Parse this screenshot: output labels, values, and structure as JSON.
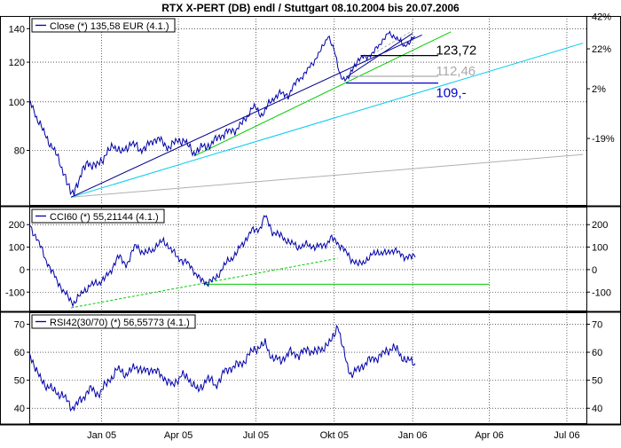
{
  "title": "RTX X-PERT (DB) endl / Stuttgart 08.10.2004  bis 20.07.2006",
  "colors": {
    "price": "#0000aa",
    "trend_blue": "#00008b",
    "trend_green": "#00cc00",
    "trend_cyan": "#00ccee",
    "trend_gray": "#b0b0b0",
    "level_black": "#000000",
    "level_blue": "#0000cc",
    "level_gray": "#aaaaaa"
  },
  "x_axis": {
    "ticks": [
      {
        "date": "2005-01-01",
        "label": "Jan 05"
      },
      {
        "date": "2005-04-01",
        "label": "Apr 05"
      },
      {
        "date": "2005-07-01",
        "label": "Jul 05"
      },
      {
        "date": "2005-10-01",
        "label": "Okt 05"
      },
      {
        "date": "2006-01-01",
        "label": "Jan 06"
      },
      {
        "date": "2006-04-01",
        "label": "Apr 06"
      },
      {
        "date": "2006-07-01",
        "label": "Jul 06"
      }
    ]
  },
  "chart_data": [
    {
      "type": "line",
      "legend": "Close (*) 135,58 EUR (4.1.)",
      "y_scale": "log",
      "ylim": [
        62,
        146
      ],
      "y_ticks_left": [
        80,
        100,
        120,
        140
      ],
      "y_ticks_right": [
        {
          "value": 84.5,
          "label": "-19%"
        },
        {
          "value": 106.2,
          "label": "2%"
        },
        {
          "value": 127.6,
          "label": "22%"
        },
        {
          "value": 148.1,
          "label": "42%"
        }
      ],
      "annotations": [
        {
          "label": "123,72",
          "value": 123.72,
          "color_key": "level_black",
          "line_from": "2005-11-01",
          "line_to": "2006-01-31",
          "label_date": "2006-01-20"
        },
        {
          "label": "112,46",
          "value": 112.46,
          "color_key": "level_gray",
          "line_from": "2005-10-15",
          "line_to": "2006-01-31",
          "label_date": "2006-01-20"
        },
        {
          "label": "109,-",
          "value": 109.0,
          "color_key": "level_blue",
          "line_from": "2005-10-15",
          "line_to": "2006-01-31",
          "label_date": "2006-01-20"
        }
      ],
      "trendlines": [
        {
          "color_key": "trend_gray",
          "points": [
            {
              "x": "2004-11-26",
              "y": 64.5
            },
            {
              "x": "2006-07-20",
              "y": 78.5
            }
          ]
        },
        {
          "color_key": "trend_cyan",
          "points": [
            {
              "x": "2004-11-26",
              "y": 64.5
            },
            {
              "x": "2006-07-20",
              "y": 131
            }
          ]
        },
        {
          "color_key": "trend_green",
          "points": [
            {
              "x": "2005-04-20",
              "y": 78
            },
            {
              "x": "2006-02-15",
              "y": 138
            }
          ]
        },
        {
          "color_key": "trend_blue",
          "points": [
            {
              "x": "2004-11-26",
              "y": 64.5
            },
            {
              "x": "2006-01-12",
              "y": 136
            }
          ]
        },
        {
          "color_key": "trend_blue",
          "points": [
            {
              "x": "2005-10-15",
              "y": 112
            },
            {
              "x": "2006-01-01",
              "y": 137
            }
          ]
        },
        {
          "color_key": "trend_gray",
          "points": [
            {
              "x": "2005-11-20",
              "y": 126
            },
            {
              "x": "2006-01-02",
              "y": 139
            }
          ],
          "dashed": true
        }
      ],
      "x": [
        "2004-10-08",
        "2004-10-18",
        "2004-10-28",
        "2004-11-08",
        "2004-11-18",
        "2004-11-26",
        "2004-12-06",
        "2004-12-15",
        "2004-12-24",
        "2005-01-05",
        "2005-01-15",
        "2005-01-25",
        "2005-02-05",
        "2005-02-15",
        "2005-02-25",
        "2005-03-08",
        "2005-03-18",
        "2005-03-28",
        "2005-04-08",
        "2005-04-18",
        "2005-04-28",
        "2005-05-08",
        "2005-05-18",
        "2005-05-28",
        "2005-06-08",
        "2005-06-18",
        "2005-06-28",
        "2005-07-08",
        "2005-07-18",
        "2005-07-28",
        "2005-08-08",
        "2005-08-18",
        "2005-08-28",
        "2005-09-08",
        "2005-09-18",
        "2005-09-24",
        "2005-10-01",
        "2005-10-08",
        "2005-10-16",
        "2005-10-25",
        "2005-11-04",
        "2005-11-14",
        "2005-11-24",
        "2005-12-04",
        "2005-12-14",
        "2005-12-22",
        "2006-01-04"
      ],
      "values": [
        101,
        92,
        85,
        79,
        72,
        65,
        70,
        76,
        74,
        78,
        82,
        79,
        83,
        80,
        82,
        85,
        81,
        83,
        84,
        79,
        81,
        82,
        85,
        87,
        88,
        92,
        98,
        94,
        100,
        104,
        103,
        110,
        114,
        121,
        129,
        136,
        126,
        113,
        110,
        119,
        123,
        124,
        131,
        137,
        134,
        129,
        135
      ]
    },
    {
      "type": "line",
      "legend": "CCI60 (*) 55,21144 (4.1.)",
      "ylim": [
        -170,
        260
      ],
      "y_ticks_left": [
        -100,
        0,
        100,
        200
      ],
      "y_ticks_right": [
        -100,
        0,
        100,
        200
      ],
      "trendlines": [
        {
          "color_key": "trend_green",
          "points": [
            {
              "x": "2004-11-26",
              "y": -170
            },
            {
              "x": "2005-10-05",
              "y": 50
            }
          ],
          "dashed": true
        },
        {
          "color_key": "trend_green",
          "points": [
            {
              "x": "2005-05-01",
              "y": -65
            },
            {
              "x": "2006-04-01",
              "y": -65
            }
          ]
        }
      ],
      "x": [
        "2004-10-08",
        "2004-10-18",
        "2004-10-28",
        "2004-11-08",
        "2004-11-18",
        "2004-11-28",
        "2004-12-08",
        "2004-12-18",
        "2004-12-28",
        "2005-01-10",
        "2005-01-20",
        "2005-01-30",
        "2005-02-10",
        "2005-02-20",
        "2005-03-02",
        "2005-03-15",
        "2005-03-25",
        "2005-04-05",
        "2005-04-15",
        "2005-04-25",
        "2005-05-05",
        "2005-05-15",
        "2005-05-25",
        "2005-06-05",
        "2005-06-15",
        "2005-06-25",
        "2005-07-05",
        "2005-07-12",
        "2005-07-20",
        "2005-07-30",
        "2005-08-10",
        "2005-08-20",
        "2005-08-30",
        "2005-09-10",
        "2005-09-20",
        "2005-09-28",
        "2005-10-05",
        "2005-10-12",
        "2005-10-20",
        "2005-10-30",
        "2005-11-10",
        "2005-11-20",
        "2005-11-30",
        "2005-12-10",
        "2005-12-20",
        "2006-01-04"
      ],
      "values": [
        200,
        130,
        40,
        -40,
        -100,
        -150,
        -110,
        -70,
        -60,
        -20,
        60,
        20,
        110,
        70,
        90,
        130,
        80,
        40,
        20,
        -40,
        -60,
        -40,
        20,
        60,
        110,
        170,
        180,
        240,
        170,
        150,
        120,
        100,
        110,
        100,
        110,
        140,
        120,
        90,
        50,
        20,
        50,
        80,
        70,
        90,
        60,
        55
      ]
    },
    {
      "type": "line",
      "legend": "RSI42(30/70) (*) 56,55773 (4.1.)",
      "ylim": [
        35,
        73
      ],
      "y_ticks_left": [
        40,
        50,
        60,
        70
      ],
      "y_ticks_right": [
        40,
        50,
        60,
        70
      ],
      "x": [
        "2004-10-08",
        "2004-10-18",
        "2004-10-28",
        "2004-11-08",
        "2004-11-18",
        "2004-11-28",
        "2004-12-08",
        "2004-12-18",
        "2004-12-28",
        "2005-01-10",
        "2005-01-20",
        "2005-01-30",
        "2005-02-10",
        "2005-02-20",
        "2005-03-02",
        "2005-03-15",
        "2005-03-25",
        "2005-04-05",
        "2005-04-15",
        "2005-04-25",
        "2005-05-05",
        "2005-05-15",
        "2005-05-25",
        "2005-06-05",
        "2005-06-15",
        "2005-06-25",
        "2005-07-05",
        "2005-07-12",
        "2005-07-20",
        "2005-07-30",
        "2005-08-10",
        "2005-08-20",
        "2005-08-30",
        "2005-09-10",
        "2005-09-20",
        "2005-09-28",
        "2005-10-05",
        "2005-10-12",
        "2005-10-20",
        "2005-10-30",
        "2005-11-10",
        "2005-11-20",
        "2005-11-30",
        "2005-12-10",
        "2005-12-20",
        "2006-01-04"
      ],
      "values": [
        60,
        52,
        48,
        46,
        44,
        40,
        43,
        47,
        45,
        50,
        54,
        52,
        55,
        53,
        54,
        51,
        48,
        52,
        50,
        46,
        51,
        48,
        53,
        55,
        56,
        60,
        62,
        63,
        58,
        57,
        60,
        59,
        61,
        60,
        62,
        64,
        70,
        60,
        52,
        54,
        57,
        58,
        60,
        62,
        58,
        56
      ]
    }
  ]
}
